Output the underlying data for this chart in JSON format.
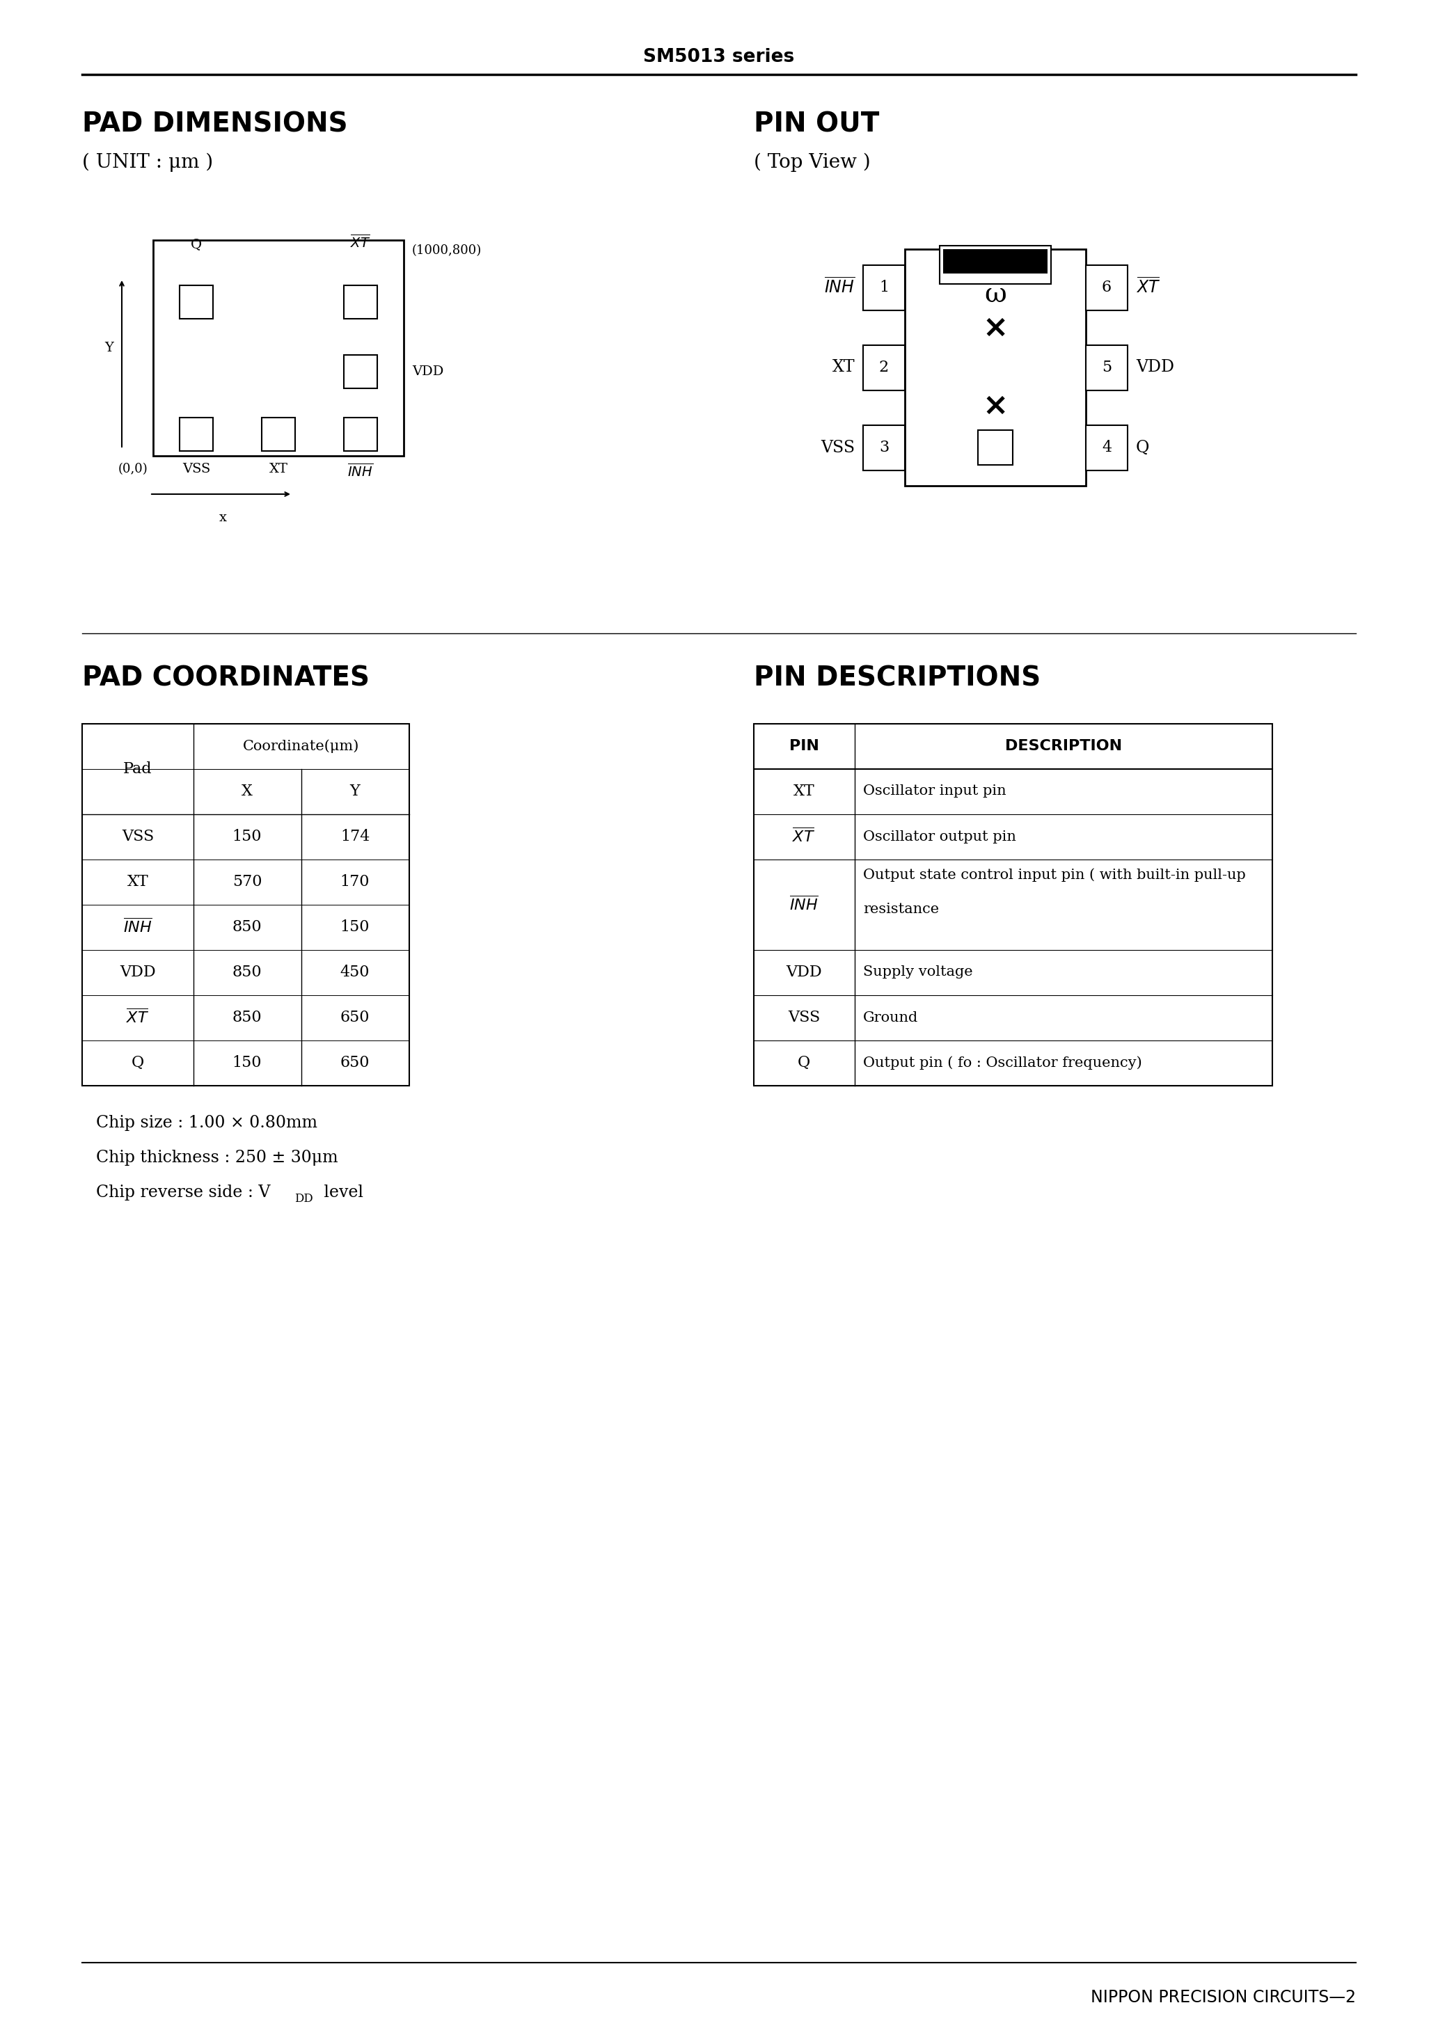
{
  "page_title": "SM5013 series",
  "section1_title": "PAD DIMENSIONS",
  "section1_subtitle": "( UNIT : μm )",
  "section2_title": "PIN OUT",
  "section2_subtitle": "( Top View )",
  "section3_title": "PAD COORDINATES",
  "section4_title": "PIN DESCRIPTIONS",
  "coord_rows": [
    [
      "VSS",
      "150",
      "174"
    ],
    [
      "XT",
      "570",
      "170"
    ],
    [
      "INH",
      "850",
      "150"
    ],
    [
      "VDD",
      "850",
      "450"
    ],
    [
      "XT_bar",
      "850",
      "650"
    ],
    [
      "Q",
      "150",
      "650"
    ]
  ],
  "pin_rows": [
    [
      "XT",
      "Oscillator input pin"
    ],
    [
      "XT_bar",
      "Oscillator output pin"
    ],
    [
      "INH_bar",
      "Output state control input pin ( with built-in pull-up\nresistance"
    ],
    [
      "VDD",
      "Supply voltage"
    ],
    [
      "VSS",
      "Ground"
    ],
    [
      "Q",
      "Output pin ( fo : Oscillator frequency)"
    ]
  ],
  "footer_right": "NIPPON PRECISION CIRCUITS—2",
  "bg_color": "#ffffff"
}
